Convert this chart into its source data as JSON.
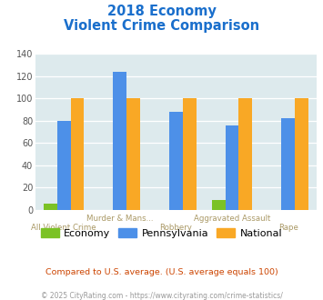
{
  "title_line1": "2018 Economy",
  "title_line2": "Violent Crime Comparison",
  "top_labels": [
    "",
    "Murder & Mans...",
    "",
    "Aggravated Assault",
    ""
  ],
  "bottom_labels": [
    "All Violent Crime",
    "",
    "Robbery",
    "",
    "Rape"
  ],
  "economy_values": [
    6,
    0,
    0,
    9,
    0
  ],
  "pennsylvania_values": [
    80,
    124,
    88,
    76,
    82
  ],
  "national_values": [
    100,
    100,
    100,
    100,
    100
  ],
  "economy_color": "#7bc225",
  "pennsylvania_color": "#4d90e8",
  "national_color": "#f9a825",
  "bg_color": "#ddeaed",
  "ylim": [
    0,
    140
  ],
  "yticks": [
    0,
    20,
    40,
    60,
    80,
    100,
    120,
    140
  ],
  "legend_labels": [
    "Economy",
    "Pennsylvania",
    "National"
  ],
  "footer_text1": "Compared to U.S. average. (U.S. average equals 100)",
  "footer_text2": "© 2025 CityRating.com - https://www.cityrating.com/crime-statistics/",
  "title_color": "#1a6fcc",
  "axis_label_color": "#aa9966",
  "footer1_color": "#cc4400",
  "footer2_color": "#999999"
}
